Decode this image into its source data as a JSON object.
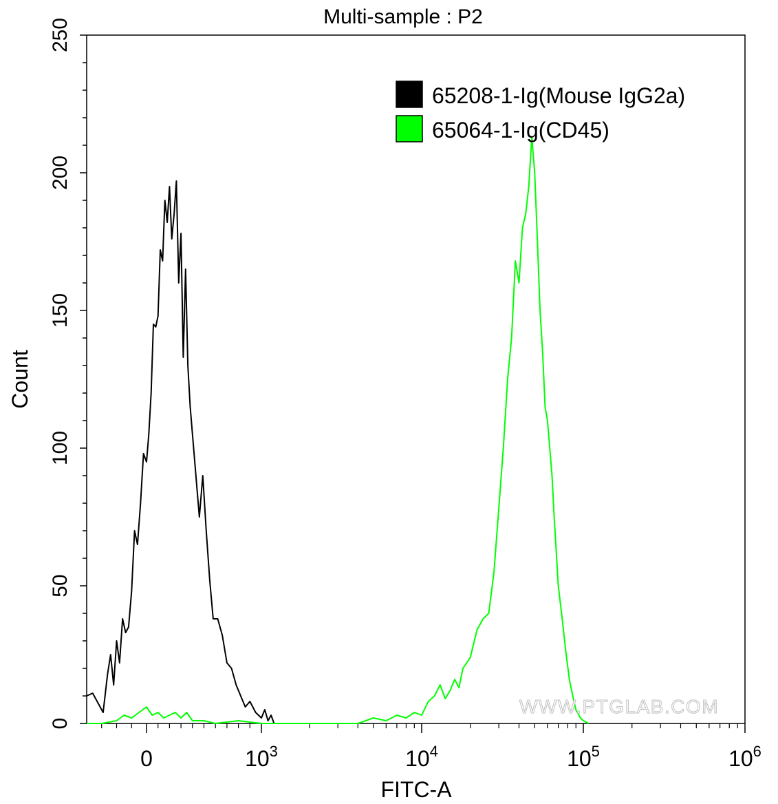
{
  "chart_data": {
    "type": "histogram",
    "title": "Multi-sample : P2",
    "xlabel": "FITC-A",
    "ylabel": "Count",
    "ylim": [
      0,
      250
    ],
    "y_ticks": [
      0,
      50,
      100,
      150,
      200,
      250
    ],
    "x_axis_scale": "biexponential",
    "x_ticks": [
      {
        "label": "0",
        "sup": "",
        "value": 0
      },
      {
        "label": "10",
        "sup": "3",
        "value": 1000
      },
      {
        "label": "10",
        "sup": "4",
        "value": 10000
      },
      {
        "label": "10",
        "sup": "5",
        "value": 100000
      },
      {
        "label": "10",
        "sup": "6",
        "value": 1000000
      }
    ],
    "legend_position": "top-right",
    "watermark": "WWW.PTGLAB.COM",
    "series": [
      {
        "name": "65208-1-Ig(Mouse IgG2a)",
        "color": "#000000",
        "points": [
          [
            -400,
            10
          ],
          [
            -360,
            11
          ],
          [
            -320,
            7
          ],
          [
            -290,
            4
          ],
          [
            -260,
            18
          ],
          [
            -240,
            25
          ],
          [
            -220,
            14
          ],
          [
            -200,
            30
          ],
          [
            -180,
            22
          ],
          [
            -160,
            38
          ],
          [
            -140,
            33
          ],
          [
            -120,
            35
          ],
          [
            -100,
            48
          ],
          [
            -80,
            70
          ],
          [
            -60,
            65
          ],
          [
            -40,
            80
          ],
          [
            -20,
            98
          ],
          [
            0,
            95
          ],
          [
            20,
            105
          ],
          [
            40,
            120
          ],
          [
            60,
            145
          ],
          [
            80,
            144
          ],
          [
            100,
            148
          ],
          [
            120,
            172
          ],
          [
            140,
            168
          ],
          [
            160,
            190
          ],
          [
            180,
            182
          ],
          [
            200,
            195
          ],
          [
            220,
            176
          ],
          [
            240,
            185
          ],
          [
            260,
            197
          ],
          [
            280,
            160
          ],
          [
            300,
            178
          ],
          [
            320,
            133
          ],
          [
            340,
            165
          ],
          [
            360,
            130
          ],
          [
            380,
            115
          ],
          [
            400,
            105
          ],
          [
            430,
            90
          ],
          [
            460,
            75
          ],
          [
            490,
            90
          ],
          [
            520,
            70
          ],
          [
            550,
            52
          ],
          [
            580,
            38
          ],
          [
            620,
            38
          ],
          [
            660,
            32
          ],
          [
            700,
            22
          ],
          [
            740,
            20
          ],
          [
            780,
            14
          ],
          [
            820,
            10
          ],
          [
            860,
            6
          ],
          [
            900,
            8
          ],
          [
            950,
            4
          ],
          [
            1000,
            2
          ],
          [
            1050,
            5
          ],
          [
            1100,
            1
          ],
          [
            1150,
            3
          ],
          [
            1200,
            0
          ]
        ]
      },
      {
        "name": "65064-1-Ig(CD45)",
        "color": "#00ff00",
        "points": [
          [
            -400,
            0
          ],
          [
            -300,
            0
          ],
          [
            -200,
            1
          ],
          [
            -150,
            3
          ],
          [
            -100,
            2
          ],
          [
            -50,
            4
          ],
          [
            0,
            6
          ],
          [
            50,
            3
          ],
          [
            100,
            4
          ],
          [
            150,
            2
          ],
          [
            200,
            3
          ],
          [
            250,
            4
          ],
          [
            300,
            2
          ],
          [
            350,
            4
          ],
          [
            400,
            1
          ],
          [
            500,
            1
          ],
          [
            600,
            0
          ],
          [
            800,
            1
          ],
          [
            1000,
            0
          ],
          [
            2000,
            0
          ],
          [
            4000,
            0
          ],
          [
            5000,
            2
          ],
          [
            6000,
            1
          ],
          [
            7000,
            3
          ],
          [
            8000,
            2
          ],
          [
            9000,
            4
          ],
          [
            10000,
            3
          ],
          [
            11000,
            8
          ],
          [
            12000,
            10
          ],
          [
            13000,
            14
          ],
          [
            14000,
            9
          ],
          [
            15000,
            12
          ],
          [
            16000,
            16
          ],
          [
            17000,
            13
          ],
          [
            18000,
            20
          ],
          [
            20000,
            24
          ],
          [
            22000,
            34
          ],
          [
            24000,
            38
          ],
          [
            26000,
            40
          ],
          [
            28000,
            55
          ],
          [
            30000,
            78
          ],
          [
            32000,
            100
          ],
          [
            34000,
            125
          ],
          [
            36000,
            140
          ],
          [
            38000,
            168
          ],
          [
            40000,
            160
          ],
          [
            42000,
            180
          ],
          [
            44000,
            185
          ],
          [
            46000,
            195
          ],
          [
            48000,
            213
          ],
          [
            50000,
            200
          ],
          [
            52000,
            175
          ],
          [
            54000,
            150
          ],
          [
            56000,
            135
          ],
          [
            58000,
            115
          ],
          [
            60000,
            110
          ],
          [
            62000,
            100
          ],
          [
            64000,
            90
          ],
          [
            66000,
            75
          ],
          [
            70000,
            50
          ],
          [
            74000,
            38
          ],
          [
            78000,
            26
          ],
          [
            82000,
            16
          ],
          [
            86000,
            10
          ],
          [
            90000,
            5
          ],
          [
            96000,
            2
          ],
          [
            100000,
            1
          ],
          [
            108000,
            0
          ]
        ]
      }
    ]
  }
}
